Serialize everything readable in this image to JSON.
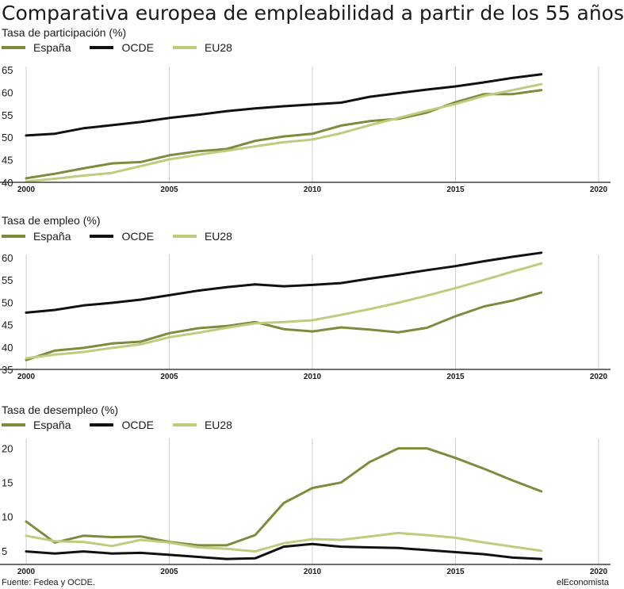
{
  "title": "Comparativa europea de empleabilidad a partir de los 55 años",
  "source": "Fuente: Fedea y OCDE.",
  "brand": "elEconomista",
  "colors": {
    "España": "#7d8c3c",
    "OCDE": "#111111",
    "EU28": "#bccd7e"
  },
  "chart_data": [
    {
      "type": "line",
      "title": "Tasa de participación (%)",
      "x_ticks": [
        2000,
        2005,
        2010,
        2015,
        2020
      ],
      "y_ticks": [
        40,
        45,
        50,
        55,
        60,
        65
      ],
      "xlim": [
        2000,
        2020
      ],
      "ylim": [
        40,
        65
      ],
      "grid": "vertical",
      "legend": [
        "España",
        "OCDE",
        "EU28"
      ],
      "x": [
        2000,
        2001,
        2002,
        2003,
        2004,
        2005,
        2006,
        2007,
        2008,
        2009,
        2010,
        2011,
        2012,
        2013,
        2014,
        2015,
        2016,
        2017,
        2018
      ],
      "series": [
        {
          "name": "España",
          "values": [
            40.9,
            41.9,
            43.1,
            44.2,
            44.5,
            46.0,
            46.9,
            47.4,
            49.2,
            50.2,
            50.8,
            52.6,
            53.6,
            54.1,
            55.5,
            57.8,
            59.6,
            59.6,
            60.5
          ]
        },
        {
          "name": "OCDE",
          "values": [
            50.4,
            50.8,
            52.0,
            52.7,
            53.4,
            54.3,
            55.0,
            55.8,
            56.4,
            56.9,
            57.3,
            57.7,
            59.0,
            59.8,
            60.6,
            61.3,
            62.2,
            63.2,
            64.0
          ]
        },
        {
          "name": "EU28",
          "values": [
            40.2,
            40.8,
            41.5,
            42.1,
            43.6,
            45.1,
            46.1,
            47.0,
            48.0,
            48.9,
            49.5,
            50.9,
            52.7,
            54.3,
            55.9,
            57.4,
            59.2,
            60.5,
            61.8
          ]
        }
      ]
    },
    {
      "type": "line",
      "title": "Tasa de empleo (%)",
      "x_ticks": [
        2000,
        2005,
        2010,
        2015,
        2020
      ],
      "y_ticks": [
        35,
        40,
        45,
        50,
        55,
        60
      ],
      "xlim": [
        2000,
        2020
      ],
      "ylim": [
        35,
        60
      ],
      "grid": "vertical",
      "legend": [
        "España",
        "OCDE",
        "EU28"
      ],
      "x": [
        2000,
        2001,
        2002,
        2003,
        2004,
        2005,
        2006,
        2007,
        2008,
        2009,
        2010,
        2011,
        2012,
        2013,
        2014,
        2015,
        2016,
        2017,
        2018
      ],
      "series": [
        {
          "name": "España",
          "values": [
            37.1,
            39.2,
            39.8,
            40.8,
            41.2,
            43.1,
            44.2,
            44.7,
            45.6,
            44.0,
            43.5,
            44.4,
            43.9,
            43.3,
            44.3,
            46.9,
            49.1,
            50.4,
            52.2
          ]
        },
        {
          "name": "OCDE",
          "values": [
            47.7,
            48.3,
            49.3,
            49.9,
            50.6,
            51.6,
            52.6,
            53.4,
            54.0,
            53.6,
            53.9,
            54.3,
            55.3,
            56.2,
            57.2,
            58.1,
            59.2,
            60.2,
            61.1
          ]
        },
        {
          "name": "EU28",
          "values": [
            37.5,
            38.3,
            38.9,
            39.8,
            40.6,
            42.2,
            43.2,
            44.3,
            45.3,
            45.6,
            46.0,
            47.2,
            48.5,
            49.9,
            51.5,
            53.2,
            55.0,
            56.9,
            58.7
          ]
        }
      ]
    },
    {
      "type": "line",
      "title": "Tasa de desempleo (%)",
      "x_ticks": [
        2000,
        2005,
        2010,
        2015,
        2020
      ],
      "y_ticks": [
        5,
        10,
        15,
        20
      ],
      "xlim": [
        2000,
        2020
      ],
      "ylim": [
        3,
        21
      ],
      "grid": "vertical",
      "legend": [
        "España",
        "OCDE",
        "EU28"
      ],
      "x": [
        2000,
        2001,
        2002,
        2003,
        2004,
        2005,
        2006,
        2007,
        2008,
        2009,
        2010,
        2011,
        2012,
        2013,
        2014,
        2015,
        2016,
        2017,
        2018
      ],
      "series": [
        {
          "name": "España",
          "values": [
            9.3,
            6.2,
            7.2,
            7.0,
            7.1,
            6.3,
            5.8,
            5.8,
            7.3,
            12.0,
            14.2,
            15.0,
            18.0,
            20.0,
            20.0,
            18.6,
            17.0,
            15.3,
            13.7
          ]
        },
        {
          "name": "OCDE",
          "values": [
            4.9,
            4.6,
            4.9,
            4.6,
            4.7,
            4.4,
            4.1,
            3.8,
            3.9,
            5.6,
            6.0,
            5.6,
            5.5,
            5.4,
            5.1,
            4.8,
            4.5,
            4.0,
            3.8
          ]
        },
        {
          "name": "EU28",
          "values": [
            7.2,
            6.4,
            6.3,
            5.7,
            6.6,
            6.2,
            5.5,
            5.3,
            4.9,
            6.1,
            6.7,
            6.6,
            7.1,
            7.6,
            7.3,
            6.9,
            6.2,
            5.6,
            5.0
          ]
        }
      ]
    }
  ]
}
